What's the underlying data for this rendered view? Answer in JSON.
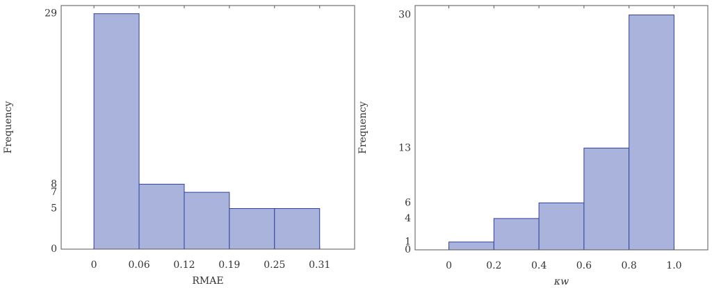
{
  "chart_data": [
    {
      "type": "histogram",
      "xlabel": "RMAE",
      "ylabel": "Frequency",
      "bins": [
        0,
        0.062,
        0.124,
        0.186,
        0.248,
        0.31
      ],
      "values": [
        29,
        8,
        7,
        5,
        5
      ],
      "color": "#aab3dc",
      "edge_color": "#2e3f9e",
      "xlim": [
        -0.045,
        0.358
      ],
      "ylim": [
        0,
        30
      ],
      "xticks": [
        0,
        {
          "value": 0.062,
          "label": "0.06"
        },
        {
          "value": 0.124,
          "label": "0.12"
        },
        {
          "value": 0.186,
          "label": "0.19"
        },
        {
          "value": 0.248,
          "label": "0.25"
        },
        0.31
      ],
      "yticks": [
        0,
        5,
        7,
        8,
        29
      ]
    },
    {
      "type": "histogram",
      "xlabel": "κw",
      "ylabel": "Frequency",
      "bins": [
        0,
        0.2,
        0.4,
        0.6,
        0.8,
        1.0
      ],
      "values": [
        1,
        4,
        6,
        13,
        30
      ],
      "color": "#aab3dc",
      "edge_color": "#2e3f9e",
      "xlim": [
        -0.15,
        1.15
      ],
      "ylim": [
        0,
        31.2
      ],
      "xticks": [
        0,
        0.2,
        0.4,
        0.6,
        0.8,
        {
          "value": 1.0,
          "label": "1.0"
        }
      ],
      "yticks": [
        0,
        1,
        4,
        6,
        13,
        30
      ]
    }
  ]
}
